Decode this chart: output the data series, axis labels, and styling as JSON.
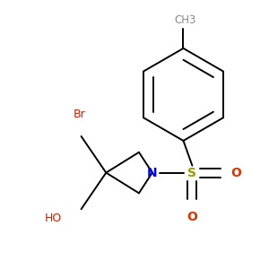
{
  "bg_color": "#ffffff",
  "black": "#000000",
  "dark_red": "#cc2200",
  "blue": "#0000ee",
  "olive": "#999900",
  "orange_red": "#dd3300",
  "ch3_label": "CH3",
  "br_label": "Br",
  "ho_label": "HO",
  "n_label": "N",
  "s_label": "S",
  "o_label": "O",
  "figsize": [
    3.0,
    3.0
  ],
  "dpi": 100
}
